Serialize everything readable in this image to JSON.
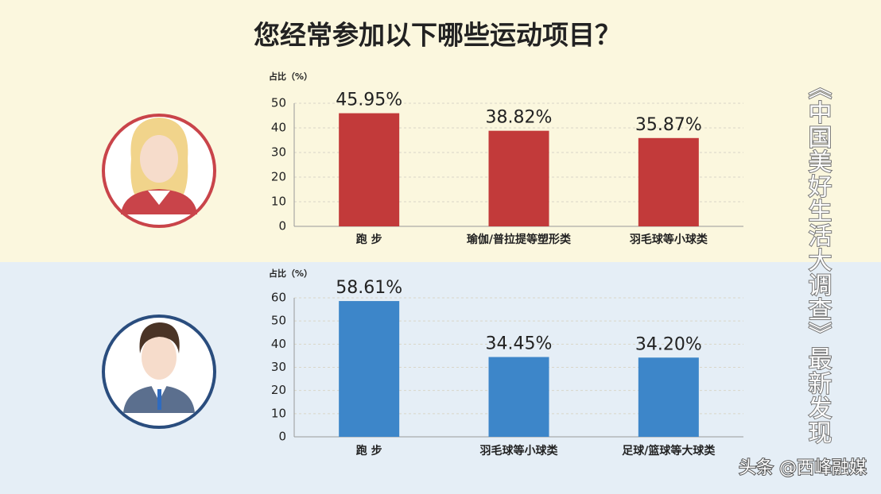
{
  "title": "您经常参加以下哪些运动项目？",
  "side_text": "《中国美好生活大调查》最新发现",
  "watermark": "头条 @西峰融媒",
  "chart_data": [
    {
      "type": "bar",
      "y_label": "占比（%）",
      "categories": [
        "跑 步",
        "瑜伽/普拉提等塑形类",
        "羽毛球等小球类"
      ],
      "values": [
        45.95,
        38.82,
        35.87
      ],
      "value_labels": [
        "45.95%",
        "38.82%",
        "35.87%"
      ],
      "color": "#c23a3a",
      "ylim": [
        0,
        50
      ],
      "yticks": [
        0,
        10,
        20,
        30,
        40,
        50
      ],
      "grid": true
    },
    {
      "type": "bar",
      "y_label": "占比（%）",
      "categories": [
        "跑 步",
        "羽毛球等小球类",
        "足球/篮球等大球类"
      ],
      "values": [
        58.61,
        34.45,
        34.2
      ],
      "value_labels": [
        "58.61%",
        "34.45%",
        "34.20%"
      ],
      "color": "#3d86c9",
      "ylim": [
        0,
        60
      ],
      "yticks": [
        0,
        10,
        20,
        30,
        40,
        50,
        60
      ],
      "grid": true
    }
  ]
}
